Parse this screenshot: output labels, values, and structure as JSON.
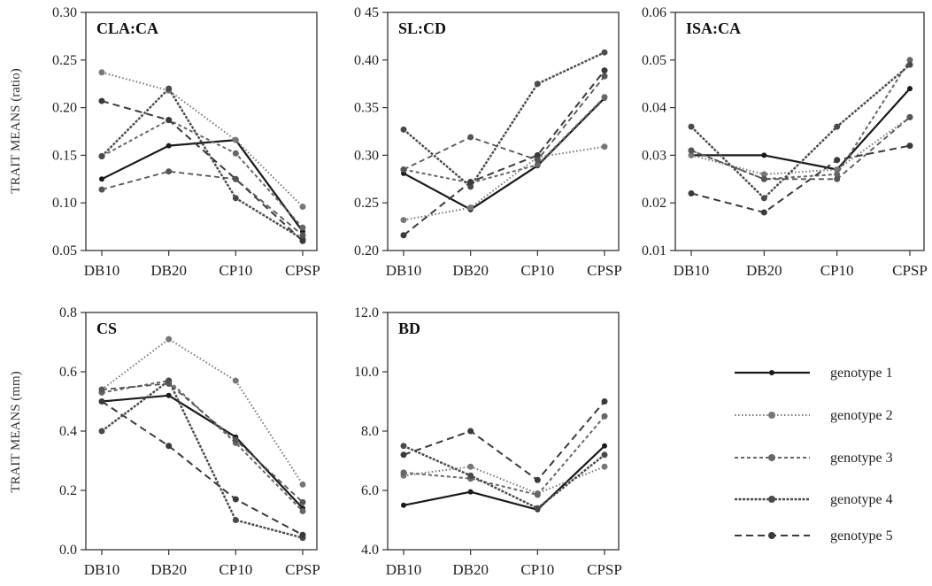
{
  "figure": {
    "ylabels": [
      "TRAIT MEANS (ratio)",
      "TRAIT MEANS (mm)"
    ]
  },
  "chart_data": [
    {
      "type": "line",
      "title": "CLA:CA",
      "categories": [
        "DB10",
        "DB20",
        "CP10",
        "CPSP"
      ],
      "ylim": [
        0.05,
        0.3
      ],
      "yticks": [
        0.05,
        0.1,
        0.15,
        0.2,
        0.25,
        0.3
      ],
      "ytick_labels": [
        "0.05",
        "0.10",
        "0.15",
        "0.20",
        "0.25",
        "0.30"
      ],
      "series": [
        {
          "name": "genotype 1",
          "values": [
            0.125,
            0.16,
            0.166,
            0.07
          ]
        },
        {
          "name": "genotype 2",
          "values": [
            0.237,
            0.218,
            0.166,
            0.096
          ]
        },
        {
          "name": "genotype 3",
          "values": [
            0.149,
            0.187,
            0.152,
            0.074
          ]
        },
        {
          "name": "genotype 4",
          "values": [
            0.149,
            0.22,
            0.105,
            0.062
          ]
        },
        {
          "name": "genotype 5",
          "values": [
            0.207,
            0.187,
            0.125,
            0.06
          ]
        },
        {
          "name": "",
          "values": [
            0.114,
            0.133,
            0.125,
            0.066
          ]
        }
      ]
    },
    {
      "type": "line",
      "title": "SL:CD",
      "categories": [
        "DB10",
        "DB20",
        "CP10",
        "CPSP"
      ],
      "ylim": [
        0.2,
        0.45
      ],
      "yticks": [
        0.2,
        0.25,
        0.3,
        0.35,
        0.4,
        0.45
      ],
      "ytick_labels": [
        "0.20",
        "0.25",
        "0.30",
        "0.35",
        "0.40",
        "0 45"
      ],
      "series": [
        {
          "name": "genotype 1",
          "values": [
            0.281,
            0.243,
            0.289,
            0.36
          ]
        },
        {
          "name": "genotype 2",
          "values": [
            0.232,
            0.245,
            0.298,
            0.309
          ]
        },
        {
          "name": "genotype 3",
          "values": [
            0.285,
            0.271,
            0.29,
            0.361
          ]
        },
        {
          "name": "genotype 4",
          "values": [
            0.327,
            0.267,
            0.375,
            0.408
          ]
        },
        {
          "name": "genotype 5",
          "values": [
            0.216,
            0.272,
            0.3,
            0.389
          ]
        },
        {
          "name": "",
          "values": [
            0.285,
            0.319,
            0.295,
            0.383
          ]
        }
      ]
    },
    {
      "type": "line",
      "title": "ISA:CA",
      "categories": [
        "DB10",
        "DB20",
        "CP10",
        "CPSP"
      ],
      "ylim": [
        0.01,
        0.06
      ],
      "yticks": [
        0.01,
        0.02,
        0.03,
        0.04,
        0.05,
        0.06
      ],
      "ytick_labels": [
        "0.01",
        "0.02",
        "0.03",
        "0.04",
        "0.05",
        "0.06"
      ],
      "series": [
        {
          "name": "genotype 1",
          "values": [
            0.03,
            0.03,
            0.027,
            0.044
          ]
        },
        {
          "name": "genotype 2",
          "values": [
            0.03,
            0.026,
            0.027,
            0.038
          ]
        },
        {
          "name": "genotype 3",
          "values": [
            0.031,
            0.025,
            0.026,
            0.05
          ]
        },
        {
          "name": "genotype 4",
          "values": [
            0.036,
            0.021,
            0.036,
            0.049
          ]
        },
        {
          "name": "genotype 5",
          "values": [
            0.022,
            0.018,
            0.029,
            0.032
          ]
        },
        {
          "name": "",
          "values": [
            0.031,
            0.025,
            0.025,
            0.038
          ]
        }
      ]
    },
    {
      "type": "line",
      "title": "CS",
      "categories": [
        "DB10",
        "DB20",
        "CP10",
        "CPSP"
      ],
      "ylim": [
        0.0,
        0.8
      ],
      "yticks": [
        0.0,
        0.2,
        0.4,
        0.6,
        0.8
      ],
      "ytick_labels": [
        "0.0",
        "0.2",
        "0.4",
        "0.6",
        "0.8"
      ],
      "series": [
        {
          "name": "genotype 1",
          "values": [
            0.5,
            0.52,
            0.38,
            0.14
          ]
        },
        {
          "name": "genotype 2",
          "values": [
            0.54,
            0.71,
            0.57,
            0.22
          ]
        },
        {
          "name": "genotype 3",
          "values": [
            0.53,
            0.57,
            0.36,
            0.13
          ]
        },
        {
          "name": "genotype 4",
          "values": [
            0.4,
            0.57,
            0.1,
            0.04
          ]
        },
        {
          "name": "genotype 5",
          "values": [
            0.5,
            0.35,
            0.17,
            0.05
          ]
        },
        {
          "name": "",
          "values": [
            0.54,
            0.56,
            0.37,
            0.16
          ]
        }
      ]
    },
    {
      "type": "line",
      "title": "BD",
      "categories": [
        "DB10",
        "DB20",
        "CP10",
        "CPSP"
      ],
      "ylim": [
        4.0,
        12.0
      ],
      "yticks": [
        4.0,
        6.0,
        8.0,
        10.0,
        12.0
      ],
      "ytick_labels": [
        "4.0",
        "6.0",
        "8.0",
        "10.0",
        "12.0"
      ],
      "series": [
        {
          "name": "genotype 1",
          "values": [
            5.5,
            5.95,
            5.35,
            7.5
          ]
        },
        {
          "name": "genotype 2",
          "values": [
            6.5,
            6.8,
            5.9,
            6.8
          ]
        },
        {
          "name": "genotype 3",
          "values": [
            6.6,
            6.4,
            5.85,
            8.5
          ]
        },
        {
          "name": "genotype 4",
          "values": [
            7.5,
            6.5,
            5.4,
            7.2
          ]
        },
        {
          "name": "genotype 5",
          "values": [
            7.2,
            8.0,
            6.35,
            9.0
          ]
        }
      ]
    }
  ],
  "legend": {
    "position": "bottom-right",
    "items": [
      {
        "label": "genotype 1",
        "color": "#1a1a1a"
      },
      {
        "label": "genotype 2",
        "color": "#777777"
      },
      {
        "label": "genotype 3",
        "color": "#666666"
      },
      {
        "label": "genotype 4",
        "color": "#4a4a4a"
      },
      {
        "label": "genotype 5",
        "color": "#3a3a3a"
      }
    ]
  }
}
